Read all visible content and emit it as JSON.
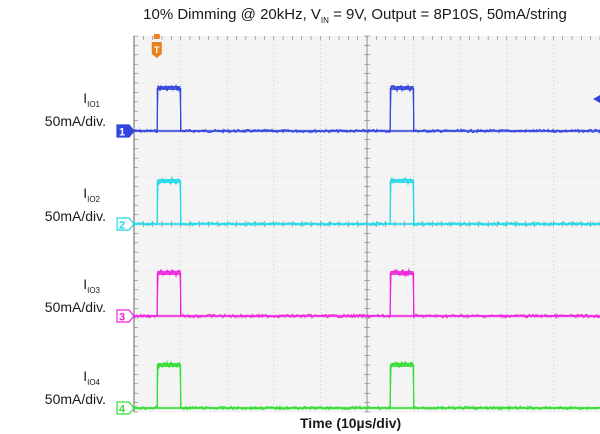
{
  "title": {
    "pre": "10% Dimming @ 20kHz, V",
    "sub": "IN",
    "post": " = 9V, Output = 8P10S, 50mA/string"
  },
  "xaxis_label": "Time (10µs/div)",
  "trigger_marker": "T",
  "colors": {
    "grid_bg": "#f4f4f4",
    "ch1": "#3344dd",
    "ch2": "#22d8e6",
    "ch3": "#ee22dd",
    "ch4": "#33dd33",
    "trigger": "#e8821e"
  },
  "channels": [
    {
      "number": "1",
      "label_main": "I",
      "label_sub": "IO1",
      "scale": "50mA/div.",
      "color": "#3344dd"
    },
    {
      "number": "2",
      "label_main": "I",
      "label_sub": "IO2",
      "scale": "50mA/div.",
      "color": "#22d8e6"
    },
    {
      "number": "3",
      "label_main": "I",
      "label_sub": "IO3",
      "scale": "50mA/div.",
      "color": "#ee22dd"
    },
    {
      "number": "4",
      "label_main": "I",
      "label_sub": "IO4",
      "scale": "50mA/div.",
      "color": "#33dd33"
    }
  ],
  "chart_data": {
    "type": "line",
    "title": "10% Dimming @ 20kHz, VIN = 9V, Output = 8P10S, 50mA/string",
    "xlabel": "Time (10µs/div)",
    "ylabel": "",
    "time_per_div_us": 10,
    "current_per_div_mA": 50,
    "pwm_frequency_kHz": 20,
    "duty_cycle_percent": 10,
    "x_unit": "µs",
    "y_unit": "mA",
    "xlim": [
      0,
      100
    ],
    "pulse_high_mA": 50,
    "pulses": [
      {
        "start_us": 5,
        "end_us": 10
      },
      {
        "start_us": 55,
        "end_us": 60
      }
    ],
    "series": [
      {
        "name": "IIO1",
        "channel": "1",
        "low_mA": 0,
        "high_mA": 50
      },
      {
        "name": "IIO2",
        "channel": "2",
        "low_mA": 0,
        "high_mA": 50
      },
      {
        "name": "IIO3",
        "channel": "3",
        "low_mA": 0,
        "high_mA": 50
      },
      {
        "name": "IIO4",
        "channel": "4",
        "low_mA": 0,
        "high_mA": 50
      }
    ],
    "grid": true,
    "visible_xrange_us": [
      0,
      100
    ]
  }
}
